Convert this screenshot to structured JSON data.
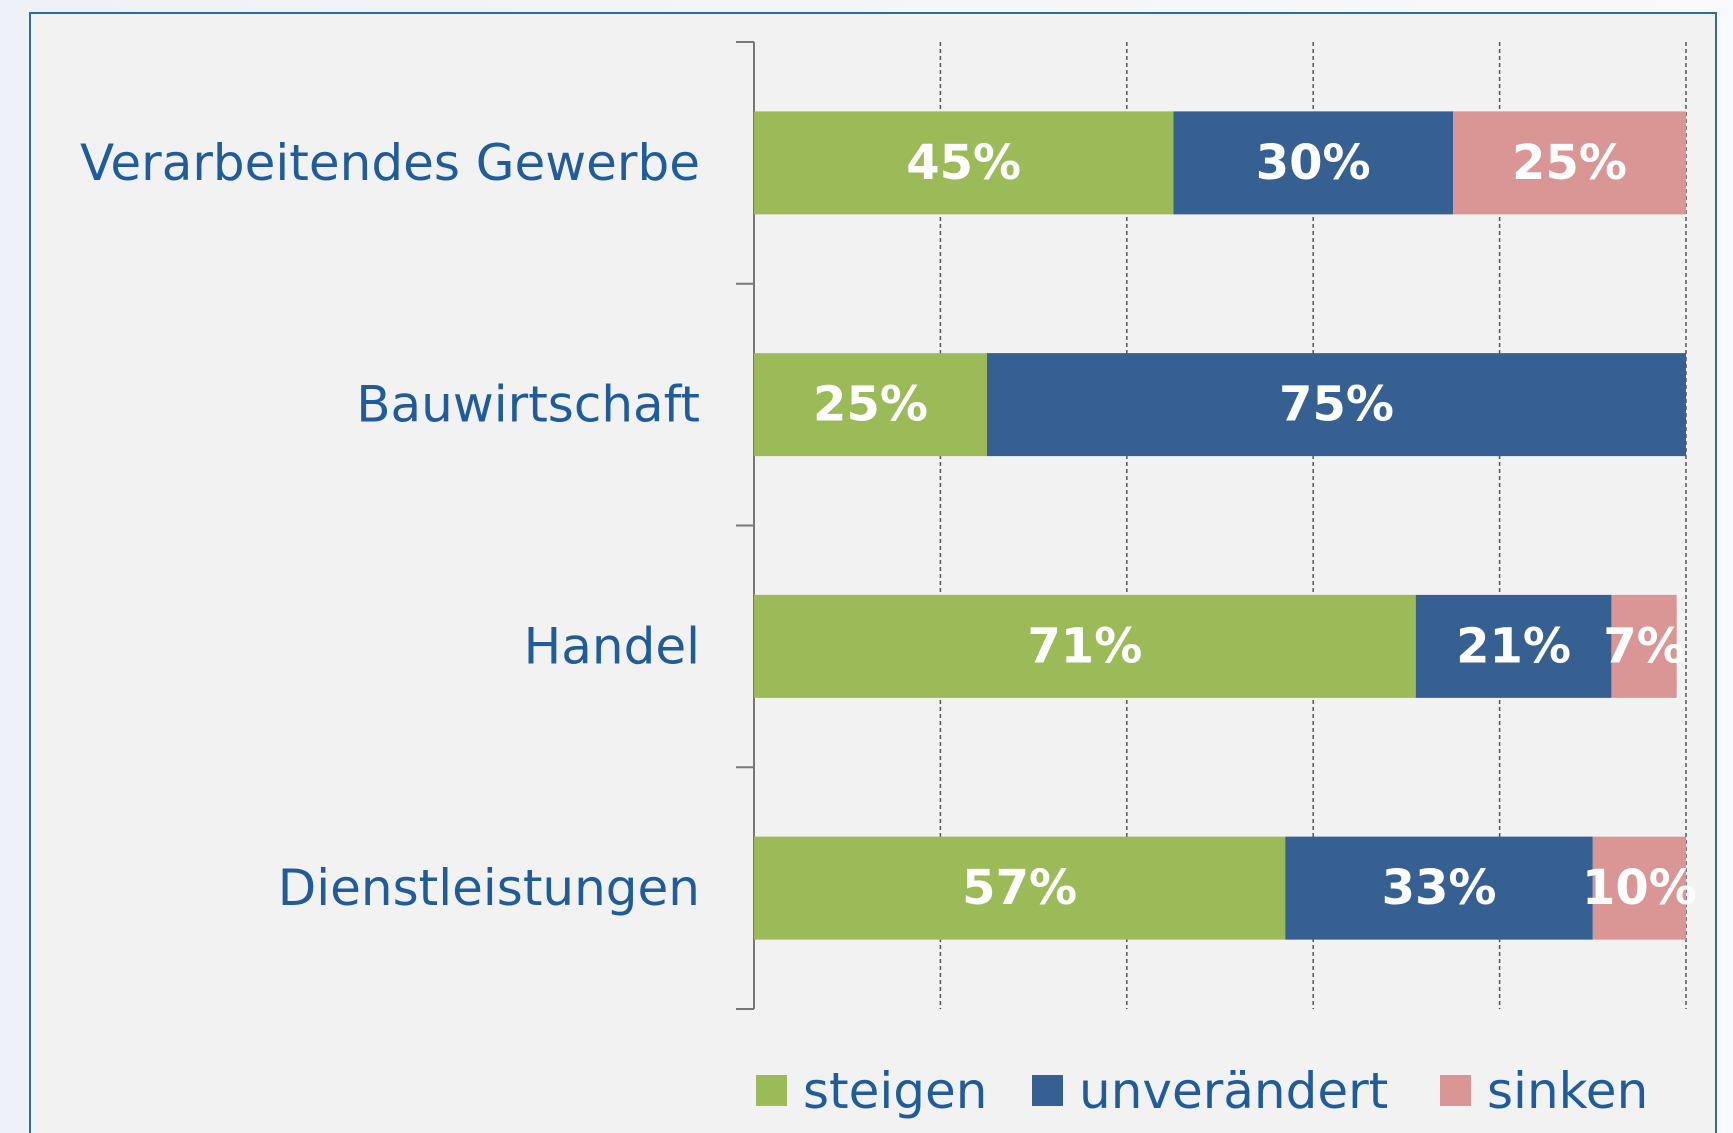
{
  "chart_data": {
    "type": "stacked-bar-horizontal",
    "categories": [
      "Verarbeitendes Gewerbe",
      "Bauwirtschaft",
      "Handel",
      "Dienstleistungen"
    ],
    "series": [
      {
        "name": "steigen",
        "color": "#9bbb59",
        "values": [
          45,
          25,
          71,
          57
        ],
        "value_labels": [
          "45%",
          "25%",
          "71%",
          "57%"
        ]
      },
      {
        "name": "unverändert",
        "color": "#376092",
        "values": [
          30,
          75,
          21,
          33
        ],
        "value_labels": [
          "30%",
          "75%",
          "21%",
          "33%"
        ]
      },
      {
        "name": "sinken",
        "color": "#d99694",
        "values": [
          25,
          0,
          7,
          10
        ],
        "value_labels": [
          "25%",
          null,
          "7%",
          "10%"
        ]
      }
    ],
    "xlim": [
      0,
      100
    ],
    "xticks": [
      0,
      20,
      40,
      60,
      80,
      100
    ],
    "grid": true,
    "legend": "bottom"
  }
}
